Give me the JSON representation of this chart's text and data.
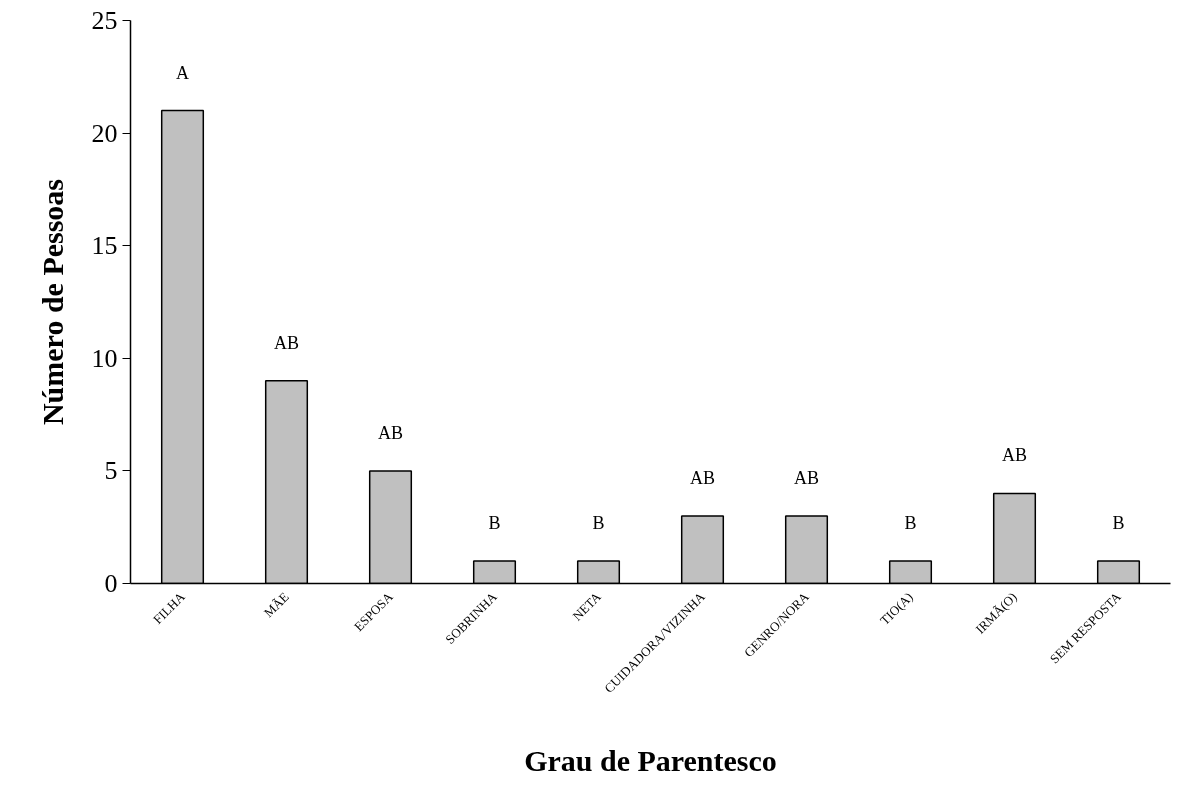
{
  "chart_data": {
    "type": "bar",
    "xlabel": "Grau de Parentesco",
    "ylabel": "Número de Pessoas",
    "categories": [
      "FILHA",
      "MÃE",
      "ESPOSA",
      "SOBRINHA",
      "NETA",
      "CUIDADORA/VIZINHA",
      "GENRO/NORA",
      "TIO(A)",
      "IRMÃ(O)",
      "SEM RESPOSTA"
    ],
    "values": [
      21,
      9,
      5,
      1,
      1,
      3,
      3,
      1,
      4,
      1
    ],
    "color": "#c0c0c0",
    "ylim": [
      0,
      25
    ],
    "yticks": [
      0,
      5,
      10,
      15,
      20,
      25
    ],
    "grid": false,
    "annotations": [
      "A",
      "AB",
      "AB",
      "B",
      "B",
      "AB",
      "AB",
      "B",
      "AB",
      "B"
    ]
  }
}
